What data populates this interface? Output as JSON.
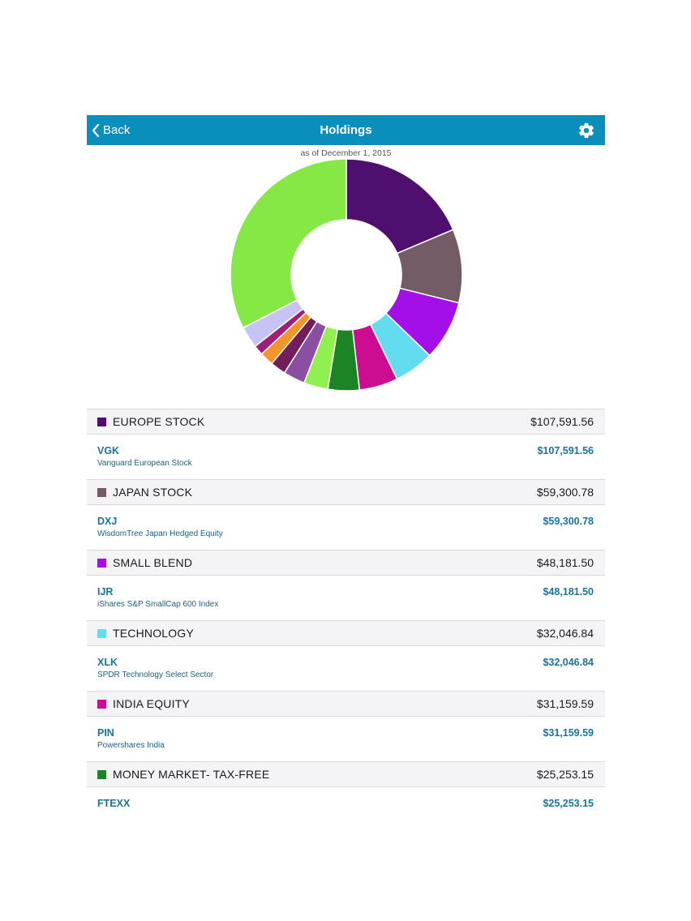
{
  "navbar": {
    "back_label": "Back",
    "title": "Holdings",
    "settings_icon": "gear-icon"
  },
  "as_of": "as of December 1, 2015",
  "colors": {
    "navbar_bg": "#0a8fbd",
    "link_text": "#1a7498"
  },
  "chart_data": {
    "type": "pie",
    "donut": true,
    "slices": [
      {
        "label": "EUROPE STOCK",
        "value": 107591.56,
        "color": "#4e0f6e"
      },
      {
        "label": "JAPAN STOCK",
        "value": 59300.78,
        "color": "#735c66"
      },
      {
        "label": "SMALL BLEND",
        "value": 48181.5,
        "color": "#a40ee9"
      },
      {
        "label": "TECHNOLOGY",
        "value": 32046.84,
        "color": "#63dcf0"
      },
      {
        "label": "INDIA EQUITY",
        "value": 31159.59,
        "color": "#cc0d92"
      },
      {
        "label": "MONEY MARKET- TAX-FREE",
        "value": 25253.15,
        "color": "#1c8424"
      },
      {
        "label": "",
        "value": 19500,
        "color": "#8ff04f"
      },
      {
        "label": "",
        "value": 17500,
        "color": "#8a4fa0"
      },
      {
        "label": "",
        "value": 12500,
        "color": "#741d5b"
      },
      {
        "label": "",
        "value": 11000,
        "color": "#f2962a"
      },
      {
        "label": "",
        "value": 8000,
        "color": "#a21e74"
      },
      {
        "label": "",
        "value": 17500,
        "color": "#c8c3f7"
      },
      {
        "label": "",
        "value": 188000,
        "color": "#86e845"
      }
    ]
  },
  "groups": [
    {
      "name": "EUROPE STOCK",
      "total": "$107,591.56",
      "color": "#4e0f6e",
      "holdings": [
        {
          "ticker": "VGK",
          "name": "Vanguard European Stock",
          "value": "$107,591.56"
        }
      ]
    },
    {
      "name": "JAPAN STOCK",
      "total": "$59,300.78",
      "color": "#735c66",
      "holdings": [
        {
          "ticker": "DXJ",
          "name": "WisdomTree Japan Hedged Equity",
          "value": "$59,300.78"
        }
      ]
    },
    {
      "name": "SMALL BLEND",
      "total": "$48,181.50",
      "color": "#a40ee9",
      "holdings": [
        {
          "ticker": "IJR",
          "name": "iShares S&P SmallCap 600 Index",
          "value": "$48,181.50"
        }
      ]
    },
    {
      "name": "TECHNOLOGY",
      "total": "$32,046.84",
      "color": "#63dcf0",
      "holdings": [
        {
          "ticker": "XLK",
          "name": "SPDR Technology Select Sector",
          "value": "$32,046.84"
        }
      ]
    },
    {
      "name": "INDIA EQUITY",
      "total": "$31,159.59",
      "color": "#cc0d92",
      "holdings": [
        {
          "ticker": "PIN",
          "name": "Powershares India",
          "value": "$31,159.59"
        }
      ]
    },
    {
      "name": "MONEY MARKET- TAX-FREE",
      "total": "$25,253.15",
      "color": "#1c8424",
      "holdings": [
        {
          "ticker": "FTEXX",
          "name": "",
          "value": "$25,253.15"
        }
      ]
    }
  ]
}
